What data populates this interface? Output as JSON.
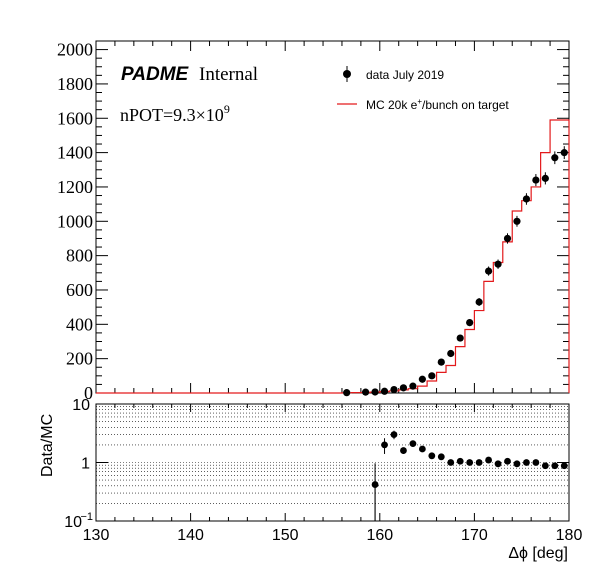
{
  "texts": {
    "brand": "PADME",
    "brand_suffix": "Internal",
    "npot_prefix": "nPOT=9.3×10",
    "npot_exp": "9",
    "legend_data": "data July 2019",
    "legend_mc_a": "MC 20k e",
    "legend_mc_sup": "+",
    "legend_mc_b": "/bunch on target",
    "ratio_ylabel": "Data/MC",
    "xlabel": "Δϕ [deg]"
  },
  "colors": {
    "mc_line": "#e31a1c",
    "data_marker": "#000000",
    "axis": "#000000"
  },
  "chart_data": [
    {
      "type": "histogram",
      "xlim": [
        130,
        180
      ],
      "ylim": [
        0,
        2050
      ],
      "y_ticks": [
        0,
        200,
        400,
        600,
        800,
        1000,
        1200,
        1400,
        1600,
        1800,
        2000
      ],
      "legend": "top-right",
      "series": [
        {
          "name": "data July 2019",
          "kind": "points",
          "x": [
            156.5,
            158.5,
            159.5,
            160.5,
            161.5,
            162.5,
            163.5,
            164.5,
            165.5,
            166.5,
            167.5,
            168.5,
            169.5,
            170.5,
            171.5,
            172.5,
            173.5,
            174.5,
            175.5,
            176.5,
            177.5,
            178.5,
            179.5
          ],
          "y": [
            2,
            5,
            6,
            10,
            20,
            30,
            40,
            80,
            100,
            180,
            230,
            320,
            410,
            530,
            710,
            750,
            900,
            1000,
            1130,
            1240,
            1250,
            1370,
            1400
          ]
        },
        {
          "name": "MC 20k e+/bunch on target",
          "kind": "step",
          "bin_edges": [
            130,
            156,
            157,
            158,
            159,
            160,
            161,
            162,
            163,
            164,
            165,
            166,
            167,
            168,
            169,
            170,
            171,
            172,
            173,
            174,
            175,
            176,
            177,
            178,
            179,
            180
          ],
          "values": [
            0,
            1,
            2,
            3,
            5,
            8,
            12,
            18,
            25,
            40,
            70,
            120,
            160,
            270,
            370,
            480,
            650,
            760,
            880,
            1060,
            1120,
            1200,
            1400,
            1590,
            1590
          ]
        }
      ]
    },
    {
      "type": "scatter",
      "ylabel": "Data/MC",
      "xlabel": "Δϕ [deg]",
      "xlim": [
        130,
        180
      ],
      "x_ticks": [
        130,
        140,
        150,
        160,
        170,
        180
      ],
      "ylim": [
        0.1,
        10
      ],
      "y_scale": "log",
      "y_ticks": [
        0.1,
        1,
        10
      ],
      "grid": true,
      "series": [
        {
          "name": "ratio",
          "x": [
            159.5,
            160.5,
            161.5,
            162.5,
            163.5,
            164.5,
            165.5,
            166.5,
            167.5,
            168.5,
            169.5,
            170.5,
            171.5,
            172.5,
            173.5,
            174.5,
            175.5,
            176.5,
            177.5,
            178.5,
            179.5
          ],
          "y": [
            0.42,
            2.0,
            3.0,
            1.6,
            2.1,
            1.7,
            1.3,
            1.25,
            1.0,
            1.05,
            1.0,
            1.0,
            1.1,
            0.95,
            1.05,
            0.95,
            1.0,
            1.0,
            0.88,
            0.88,
            0.88
          ],
          "yerr_low": [
            0.32,
            0.6,
            0.5,
            0.2,
            0.25,
            0.15,
            0.1,
            0.08,
            0.06,
            0.05,
            0.05,
            0.04,
            0.04,
            0.04,
            0.04,
            0.03,
            0.03,
            0.03,
            0.03,
            0.03,
            0.03
          ],
          "yerr_high": [
            0.55,
            0.6,
            0.5,
            0.2,
            0.25,
            0.15,
            0.1,
            0.08,
            0.06,
            0.05,
            0.05,
            0.04,
            0.04,
            0.04,
            0.04,
            0.03,
            0.03,
            0.03,
            0.03,
            0.03,
            0.03
          ]
        }
      ]
    }
  ]
}
